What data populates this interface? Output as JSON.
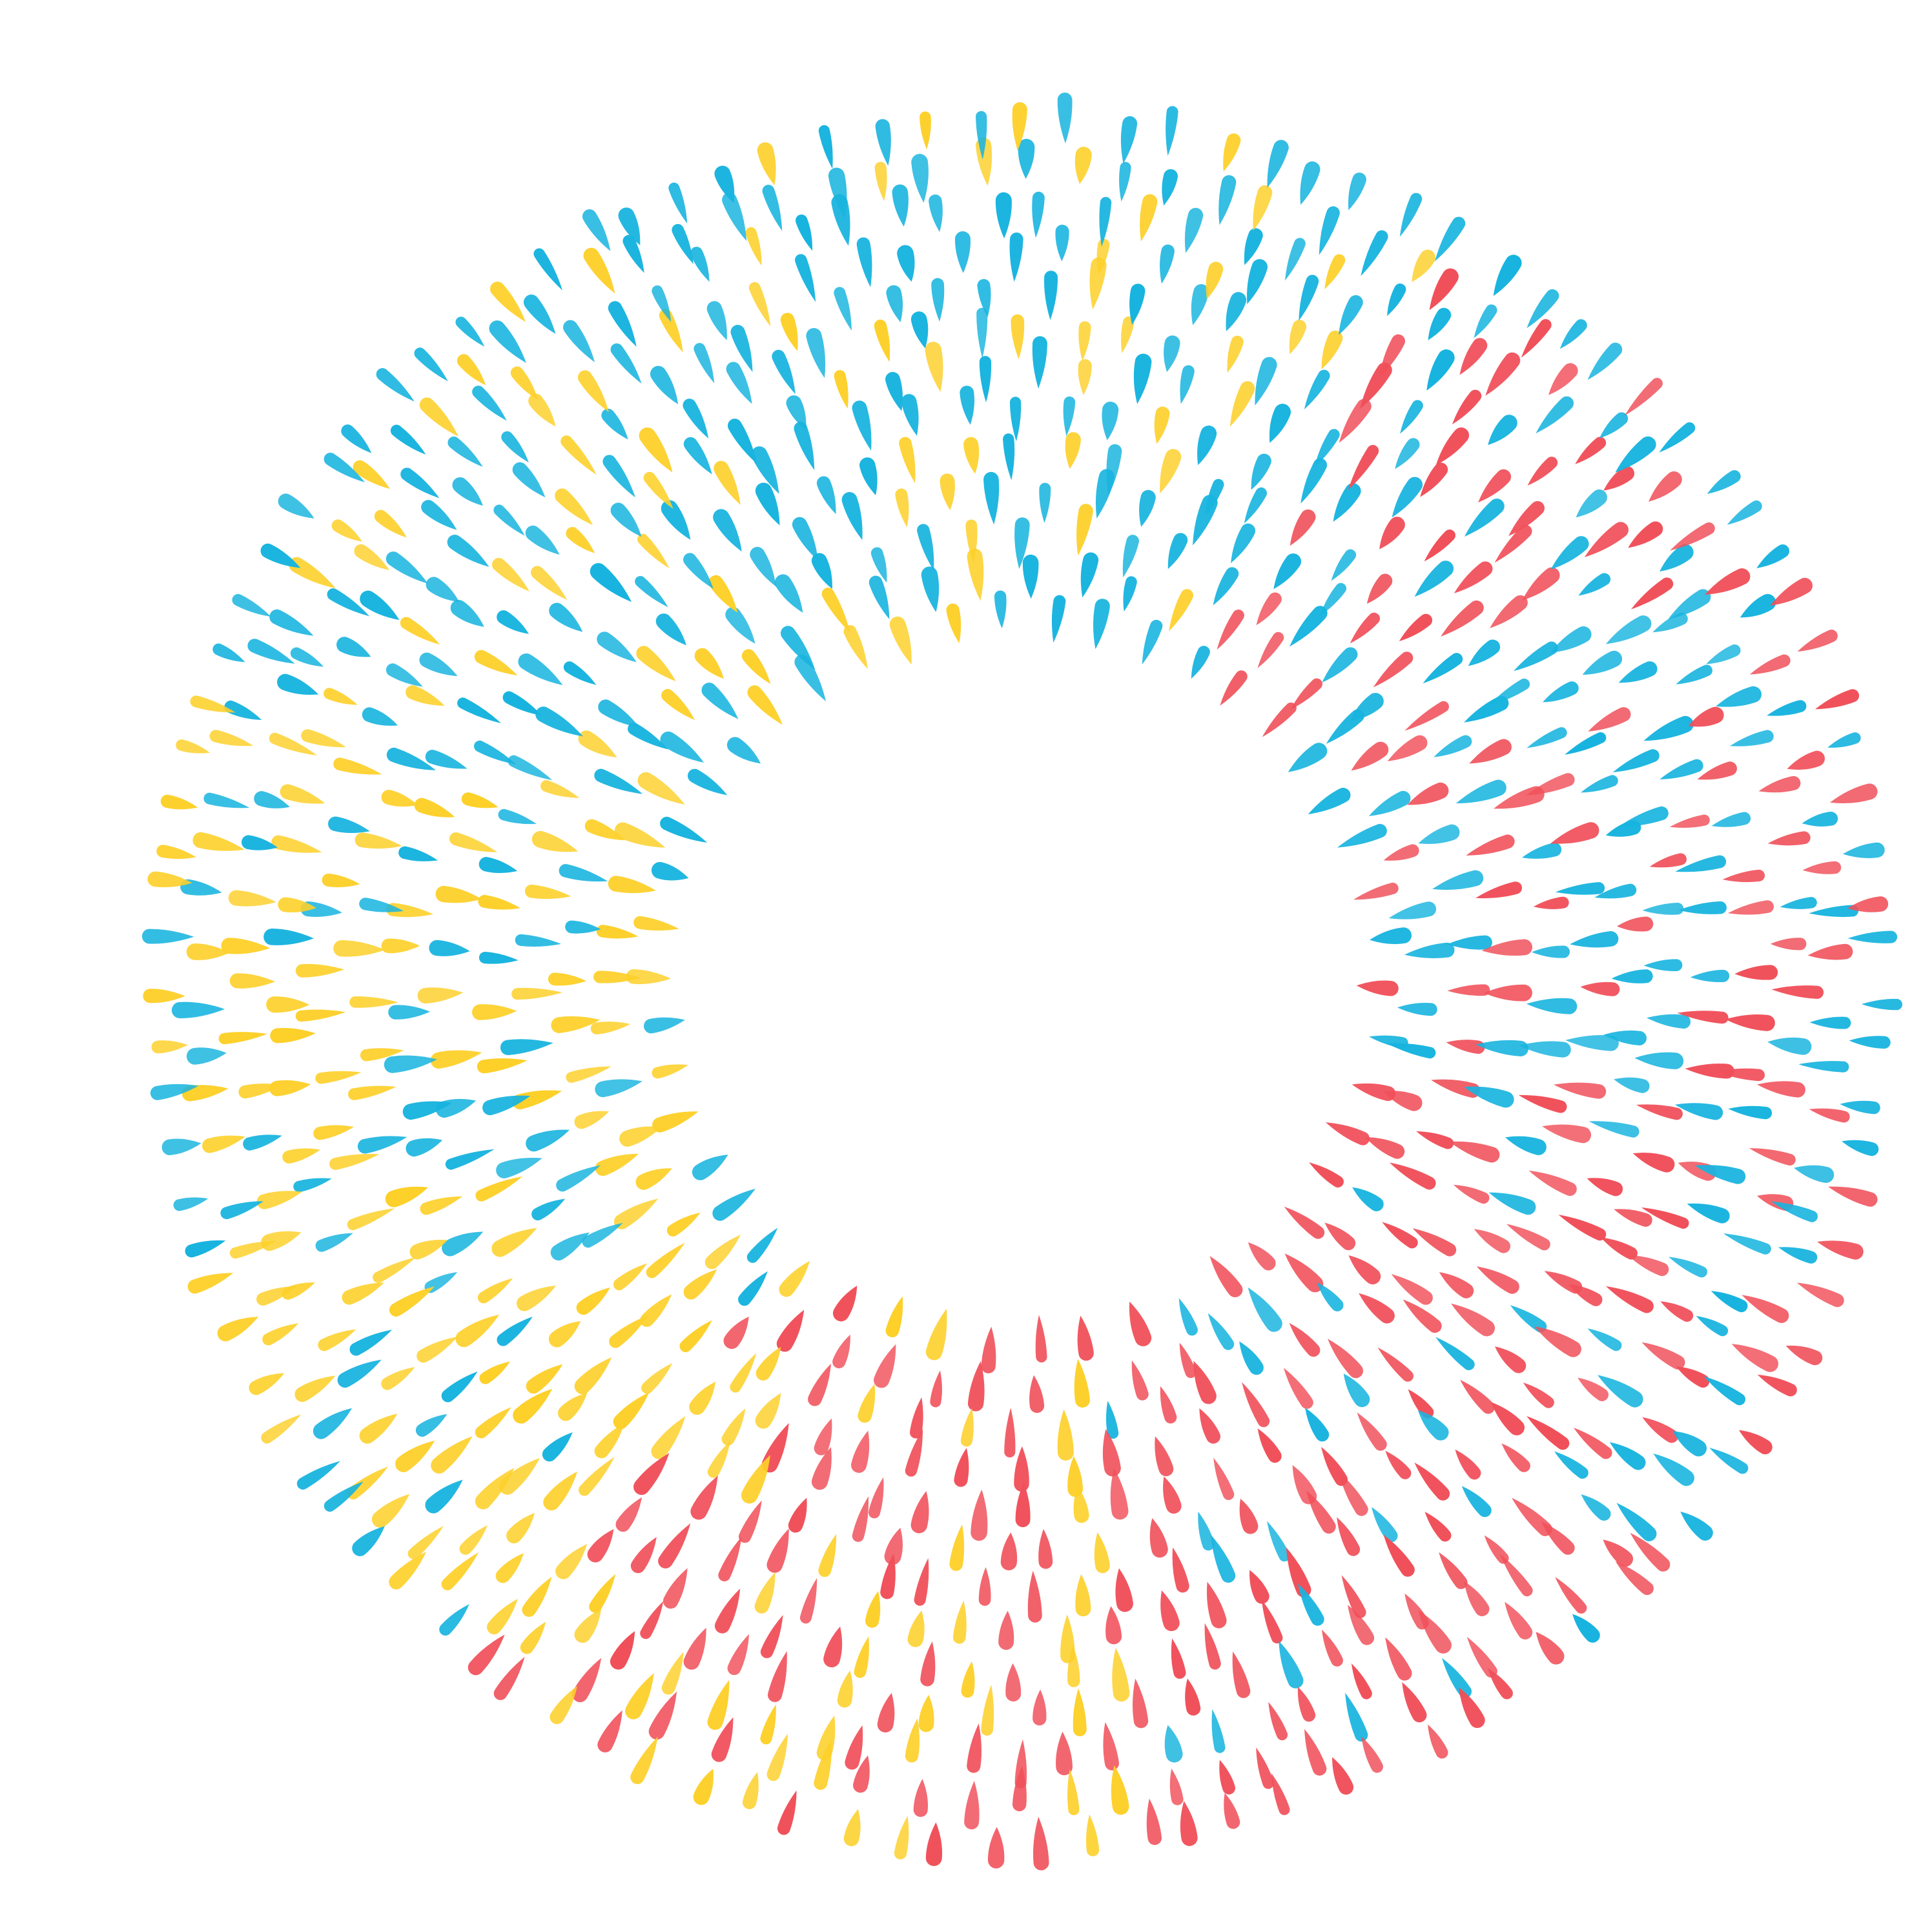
{
  "artwork": {
    "background_color": "#ffffff",
    "palette": {
      "cyan": "#18b4df",
      "yellow": "#fdd02a",
      "red": "#f0505a"
    },
    "motif": "radial-ring-of-teardrop-brush-strokes"
  }
}
